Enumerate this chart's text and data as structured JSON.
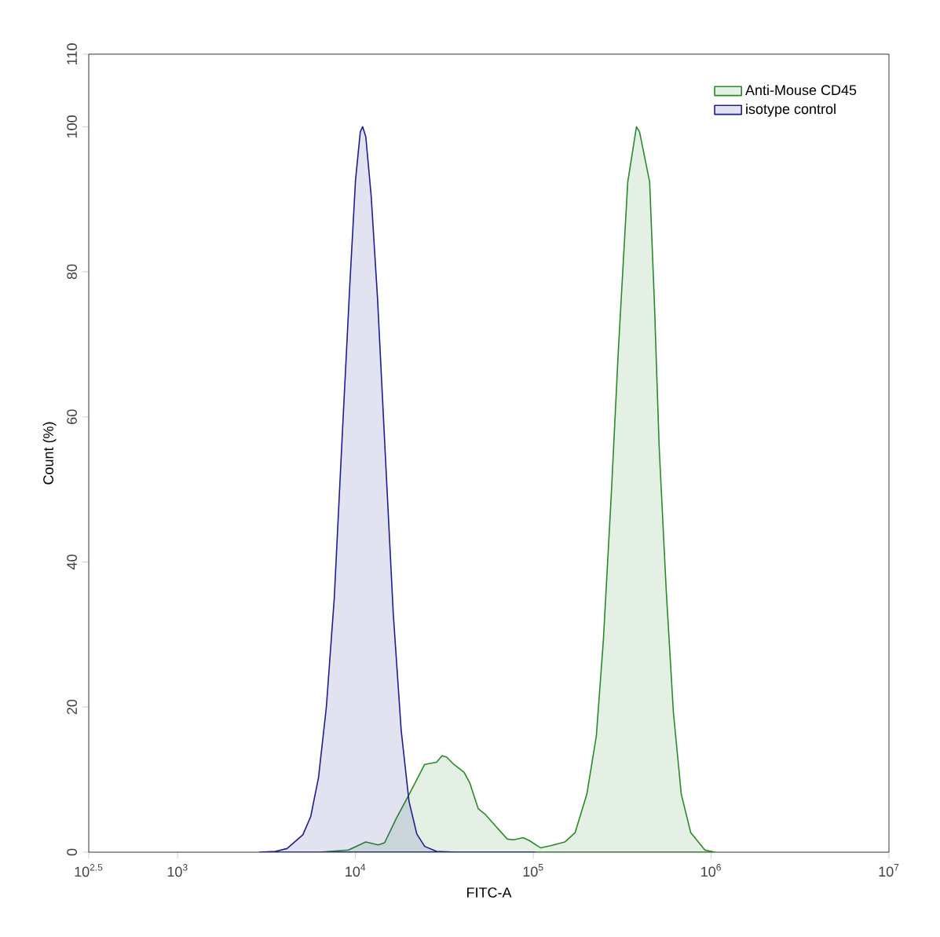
{
  "chart_data": {
    "type": "area",
    "xlabel": "FITC-A",
    "ylabel": "Count (%)",
    "log": "x",
    "xlim": [
      316.23,
      10000000
    ],
    "ylim": [
      0,
      110
    ],
    "xticks": [
      {
        "value": 316.23,
        "label": "10$^{2.5}$"
      },
      {
        "value": 1000,
        "label": "10$^{3}$"
      },
      {
        "value": 10000,
        "label": "10$^{4}$"
      },
      {
        "value": 100000,
        "label": "10$^{5}$"
      },
      {
        "value": 1000000,
        "label": "10$^{6}$"
      },
      {
        "value": 10000000,
        "label": "10$^{7}$"
      }
    ],
    "yticks": [
      0,
      20,
      40,
      60,
      80,
      100,
      110
    ],
    "legend": "top right",
    "series": [
      {
        "name": "Anti-Mouse CD45",
        "color": "#2a8a2a",
        "x": [
          6260,
          9120,
          11420,
          13430,
          14580,
          16990,
          19780,
          24500,
          28560,
          30690,
          32610,
          35730,
          40800,
          43850,
          48990,
          53710,
          61350,
          71480,
          77500,
          87580,
          95070,
          109600,
          125100,
          150300,
          171800,
          200000,
          226100,
          247800,
          274300,
          300600,
          339700,
          380200,
          395700,
          451000,
          479500,
          510100,
          559300,
          613300,
          679200,
          767700,
          922200,
          1052000
        ],
        "values": [
          0,
          0.3,
          1.4,
          1.0,
          1.3,
          4.7,
          7.7,
          12.1,
          12.4,
          13.3,
          13.1,
          12.1,
          11.0,
          9.6,
          6.0,
          5.2,
          3.6,
          1.8,
          1.7,
          2.0,
          1.6,
          0.6,
          0.9,
          1.4,
          2.7,
          8.0,
          16,
          29.3,
          49.2,
          69.1,
          92.4,
          100,
          99.3,
          92.4,
          75.8,
          55.9,
          36,
          19.3,
          8,
          2.7,
          0.3,
          0
        ]
      },
      {
        "name": "isotype control",
        "color": "#1c1c96",
        "x": [
          2884,
          3540,
          4123,
          5058,
          5598,
          6196,
          6858,
          7596,
          8407,
          9305,
          10000,
          10640,
          10970,
          11430,
          12250,
          13300,
          14720,
          16300,
          18070,
          20000,
          22130,
          24500,
          28560,
          36810,
          102000
        ],
        "values": [
          0,
          0.1,
          0.5,
          2.4,
          4.9,
          10.3,
          20,
          35,
          57,
          78.5,
          92.6,
          99.3,
          100,
          98.6,
          90.5,
          76.4,
          54.7,
          33,
          16.8,
          7,
          2.5,
          0.8,
          0.1,
          0,
          0
        ]
      }
    ]
  }
}
